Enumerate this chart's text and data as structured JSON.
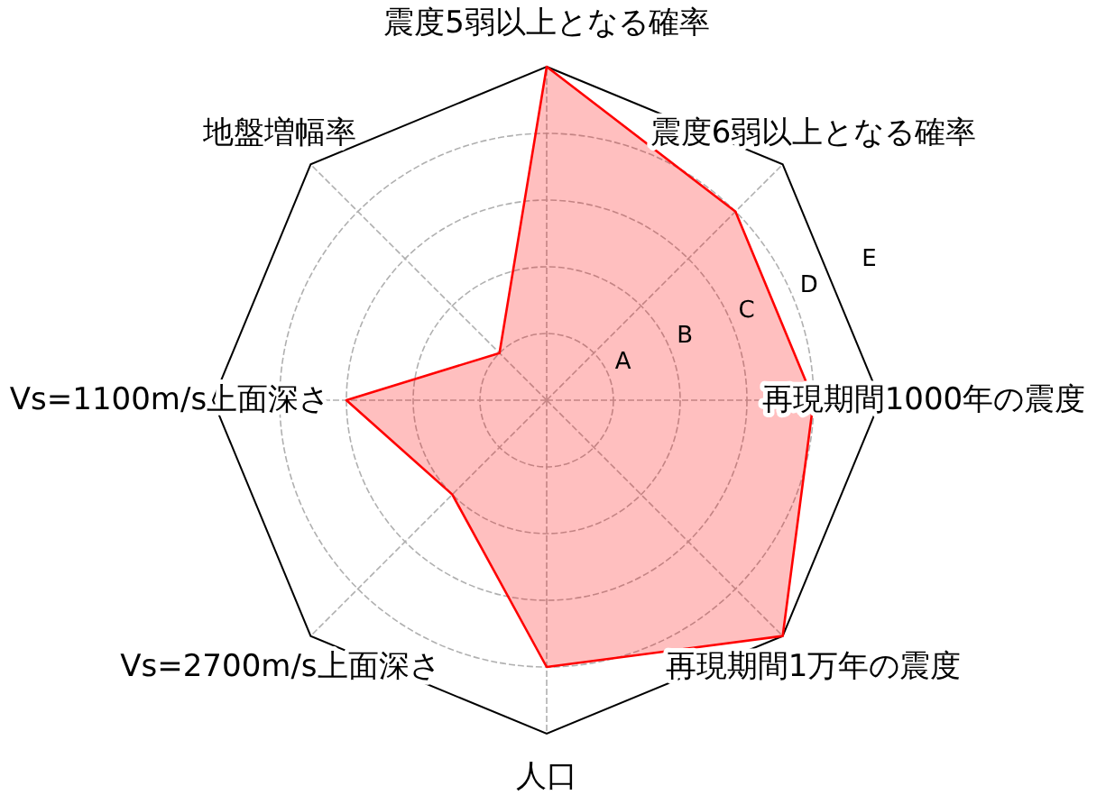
{
  "chart_data": {
    "type": "radar",
    "categories": [
      "震度5弱以上となる確率",
      "震度6弱以上となる確率",
      "再現期間1000年の震度",
      "再現期間1万年の震度",
      "人口",
      "Vs=2700m/s上面深さ",
      "Vs=1100m/s上面深さ",
      "地盤増幅率"
    ],
    "series": [
      {
        "color": "#ff0000",
        "values": [
          5,
          4,
          4,
          5,
          4,
          2,
          3,
          1
        ]
      }
    ],
    "ylim": [
      0,
      5
    ],
    "yticks": [
      {
        "value": 1,
        "label": "A"
      },
      {
        "value": 2,
        "label": "B"
      },
      {
        "value": 3,
        "label": "C"
      },
      {
        "value": 4,
        "label": "D"
      },
      {
        "value": 5,
        "label": "E"
      }
    ],
    "grid": true
  }
}
